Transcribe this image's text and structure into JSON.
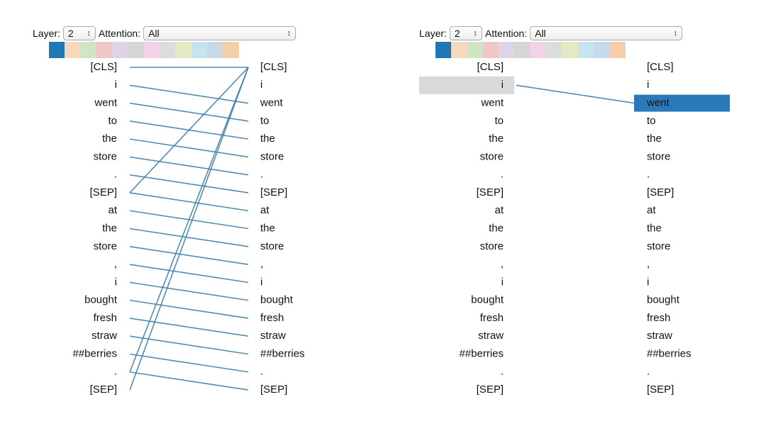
{
  "panels": [
    {
      "layer_label": "Layer:",
      "layer": "2",
      "attention_label": "Attention:",
      "attention": "All",
      "left_tokens": [
        "[CLS]",
        "i",
        "went",
        "to",
        "the",
        "store",
        ".",
        "[SEP]",
        "at",
        "the",
        "store",
        ",",
        "i",
        "bought",
        "fresh",
        "straw",
        "##berries",
        ".",
        "[SEP]"
      ],
      "right_tokens": [
        "[CLS]",
        "i",
        "went",
        "to",
        "the",
        "store",
        ".",
        "[SEP]",
        "at",
        "the",
        "store",
        ",",
        "i",
        "bought",
        "fresh",
        "straw",
        "##berries",
        ".",
        "[SEP]"
      ],
      "edges": [
        {
          "from": 0,
          "to": 0
        },
        {
          "from": 1,
          "to": 2
        },
        {
          "from": 2,
          "to": 3
        },
        {
          "from": 3,
          "to": 4
        },
        {
          "from": 4,
          "to": 5
        },
        {
          "from": 5,
          "to": 6
        },
        {
          "from": 6,
          "to": 7
        },
        {
          "from": 7,
          "to": 0
        },
        {
          "from": 7,
          "to": 8
        },
        {
          "from": 8,
          "to": 9
        },
        {
          "from": 9,
          "to": 10
        },
        {
          "from": 10,
          "to": 11
        },
        {
          "from": 11,
          "to": 12
        },
        {
          "from": 12,
          "to": 13
        },
        {
          "from": 13,
          "to": 14
        },
        {
          "from": 14,
          "to": 15
        },
        {
          "from": 15,
          "to": 16
        },
        {
          "from": 16,
          "to": 17
        },
        {
          "from": 17,
          "to": 18
        },
        {
          "from": 17,
          "to": 0
        },
        {
          "from": 18,
          "to": 0
        }
      ]
    },
    {
      "layer_label": "Layer:",
      "layer": "2",
      "attention_label": "Attention:",
      "attention": "All",
      "left_tokens": [
        "[CLS]",
        "i",
        "went",
        "to",
        "the",
        "store",
        ".",
        "[SEP]",
        "at",
        "the",
        "store",
        ",",
        "i",
        "bought",
        "fresh",
        "straw",
        "##berries",
        ".",
        "[SEP]"
      ],
      "right_tokens": [
        "[CLS]",
        "i",
        "went",
        "to",
        "the",
        "store",
        ".",
        "[SEP]",
        "at",
        "the",
        "store",
        ",",
        "i",
        "bought",
        "fresh",
        "straw",
        "##berries",
        ".",
        "[SEP]"
      ],
      "edges": [
        {
          "from": 1,
          "to": 2
        }
      ]
    }
  ]
}
